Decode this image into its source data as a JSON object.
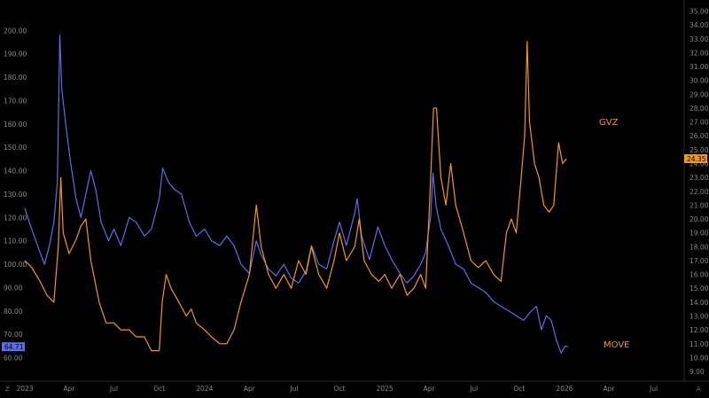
{
  "chart_data": {
    "type": "line",
    "title": "",
    "xlabel": "",
    "x_ticks": [
      "2023",
      "Apr",
      "Jul",
      "Oct",
      "2024",
      "Apr",
      "Jul",
      "Oct",
      "2025",
      "Apr",
      "Jul",
      "Oct",
      "2026",
      "Apr",
      "Jul"
    ],
    "x_range": [
      "2023-01-01",
      "2026-09-01"
    ],
    "axes": {
      "left": {
        "ylim": [
          50,
          213
        ],
        "ticks": [
          "60.00",
          "70.00",
          "80.00",
          "90.00",
          "100.00",
          "110.00",
          "120.00",
          "130.00",
          "140.00",
          "150.00",
          "160.00",
          "170.00",
          "180.00",
          "190.00",
          "200.00"
        ]
      },
      "right": {
        "ylim": [
          8.3,
          35.8
        ],
        "ticks": [
          "9.00",
          "10.00",
          "11.00",
          "12.00",
          "13.00",
          "14.00",
          "15.00",
          "16.00",
          "17.00",
          "18.00",
          "19.00",
          "20.00",
          "21.00",
          "22.00",
          "23.00",
          "24.00",
          "25.00",
          "26.00",
          "27.00",
          "28.00",
          "29.00",
          "30.00",
          "31.00",
          "32.00",
          "33.00",
          "34.00",
          "35.00"
        ]
      }
    },
    "series": [
      {
        "name": "MOVE",
        "axis": "left",
        "color": "#5b6ee8",
        "last_value_label": "64.71",
        "points": [
          [
            "2023-01-01",
            124
          ],
          [
            "2023-01-10",
            118
          ],
          [
            "2023-01-20",
            112
          ],
          [
            "2023-02-01",
            105
          ],
          [
            "2023-02-10",
            100
          ],
          [
            "2023-02-20",
            108
          ],
          [
            "2023-03-01",
            118
          ],
          [
            "2023-03-08",
            135
          ],
          [
            "2023-03-13",
            198
          ],
          [
            "2023-03-17",
            175
          ],
          [
            "2023-03-25",
            160
          ],
          [
            "2023-04-05",
            142
          ],
          [
            "2023-04-15",
            128
          ],
          [
            "2023-04-25",
            120
          ],
          [
            "2023-05-05",
            130
          ],
          [
            "2023-05-15",
            140
          ],
          [
            "2023-05-25",
            132
          ],
          [
            "2023-06-05",
            118
          ],
          [
            "2023-06-20",
            110
          ],
          [
            "2023-07-01",
            115
          ],
          [
            "2023-07-15",
            108
          ],
          [
            "2023-08-01",
            120
          ],
          [
            "2023-08-15",
            118
          ],
          [
            "2023-09-01",
            112
          ],
          [
            "2023-09-15",
            115
          ],
          [
            "2023-10-01",
            128
          ],
          [
            "2023-10-08",
            141
          ],
          [
            "2023-10-20",
            135
          ],
          [
            "2023-11-01",
            132
          ],
          [
            "2023-11-15",
            130
          ],
          [
            "2023-12-01",
            118
          ],
          [
            "2023-12-15",
            112
          ],
          [
            "2024-01-01",
            115
          ],
          [
            "2024-01-15",
            110
          ],
          [
            "2024-02-01",
            108
          ],
          [
            "2024-02-15",
            112
          ],
          [
            "2024-03-01",
            108
          ],
          [
            "2024-03-15",
            100
          ],
          [
            "2024-04-01",
            96
          ],
          [
            "2024-04-15",
            110
          ],
          [
            "2024-04-25",
            104
          ],
          [
            "2024-05-10",
            98
          ],
          [
            "2024-05-25",
            95
          ],
          [
            "2024-06-10",
            100
          ],
          [
            "2024-06-25",
            94
          ],
          [
            "2024-07-10",
            92
          ],
          [
            "2024-07-25",
            97
          ],
          [
            "2024-08-05",
            108
          ],
          [
            "2024-08-20",
            100
          ],
          [
            "2024-09-05",
            98
          ],
          [
            "2024-09-20",
            110
          ],
          [
            "2024-10-01",
            118
          ],
          [
            "2024-10-15",
            108
          ],
          [
            "2024-11-01",
            122
          ],
          [
            "2024-11-06",
            128
          ],
          [
            "2024-11-15",
            112
          ],
          [
            "2024-12-01",
            102
          ],
          [
            "2024-12-18",
            116
          ],
          [
            "2025-01-01",
            108
          ],
          [
            "2025-01-15",
            102
          ],
          [
            "2025-02-01",
            96
          ],
          [
            "2025-02-15",
            92
          ],
          [
            "2025-03-01",
            95
          ],
          [
            "2025-03-15",
            100
          ],
          [
            "2025-03-25",
            105
          ],
          [
            "2025-04-04",
            120
          ],
          [
            "2025-04-09",
            139
          ],
          [
            "2025-04-15",
            125
          ],
          [
            "2025-04-25",
            115
          ],
          [
            "2025-05-10",
            108
          ],
          [
            "2025-05-25",
            100
          ],
          [
            "2025-06-10",
            98
          ],
          [
            "2025-06-25",
            92
          ],
          [
            "2025-07-10",
            90
          ],
          [
            "2025-07-25",
            88
          ],
          [
            "2025-08-10",
            84
          ],
          [
            "2025-08-25",
            82
          ],
          [
            "2025-09-10",
            80
          ],
          [
            "2025-09-25",
            78
          ],
          [
            "2025-10-10",
            76
          ],
          [
            "2025-10-25",
            80
          ],
          [
            "2025-11-05",
            82
          ],
          [
            "2025-11-15",
            72
          ],
          [
            "2025-11-25",
            78
          ],
          [
            "2025-12-05",
            76
          ],
          [
            "2025-12-15",
            68
          ],
          [
            "2025-12-25",
            62
          ],
          [
            "2026-01-02",
            65
          ],
          [
            "2026-01-08",
            64.71
          ]
        ]
      },
      {
        "name": "GVZ",
        "axis": "right",
        "color": "#f2961e",
        "last_value_label": "24.35",
        "points": [
          [
            "2023-01-01",
            17
          ],
          [
            "2023-01-15",
            16.5
          ],
          [
            "2023-02-01",
            15.5
          ],
          [
            "2023-02-15",
            14.5
          ],
          [
            "2023-03-01",
            14
          ],
          [
            "2023-03-10",
            18
          ],
          [
            "2023-03-15",
            23
          ],
          [
            "2023-03-20",
            19
          ],
          [
            "2023-04-01",
            17.5
          ],
          [
            "2023-04-15",
            18.5
          ],
          [
            "2023-04-25",
            19.5
          ],
          [
            "2023-05-05",
            20
          ],
          [
            "2023-05-15",
            17
          ],
          [
            "2023-06-01",
            14
          ],
          [
            "2023-06-15",
            12.5
          ],
          [
            "2023-07-01",
            12.5
          ],
          [
            "2023-07-15",
            12
          ],
          [
            "2023-08-01",
            12
          ],
          [
            "2023-08-15",
            11.5
          ],
          [
            "2023-09-01",
            11.5
          ],
          [
            "2023-09-15",
            10.5
          ],
          [
            "2023-10-01",
            10.5
          ],
          [
            "2023-10-07",
            14
          ],
          [
            "2023-10-15",
            16
          ],
          [
            "2023-10-25",
            15
          ],
          [
            "2023-11-10",
            14
          ],
          [
            "2023-11-25",
            13
          ],
          [
            "2023-12-05",
            13.5
          ],
          [
            "2023-12-15",
            12.5
          ],
          [
            "2024-01-01",
            12
          ],
          [
            "2024-01-15",
            11.5
          ],
          [
            "2024-02-01",
            11
          ],
          [
            "2024-02-15",
            11
          ],
          [
            "2024-03-01",
            12
          ],
          [
            "2024-03-15",
            14
          ],
          [
            "2024-04-01",
            16
          ],
          [
            "2024-04-15",
            21
          ],
          [
            "2024-04-25",
            18
          ],
          [
            "2024-05-10",
            16
          ],
          [
            "2024-05-25",
            15
          ],
          [
            "2024-06-10",
            16
          ],
          [
            "2024-06-25",
            15
          ],
          [
            "2024-07-10",
            17
          ],
          [
            "2024-07-25",
            16
          ],
          [
            "2024-08-05",
            18
          ],
          [
            "2024-08-20",
            16
          ],
          [
            "2024-09-05",
            15
          ],
          [
            "2024-09-20",
            17
          ],
          [
            "2024-10-01",
            19
          ],
          [
            "2024-10-15",
            17
          ],
          [
            "2024-11-01",
            18
          ],
          [
            "2024-11-10",
            20
          ],
          [
            "2024-11-20",
            17
          ],
          [
            "2024-12-05",
            16
          ],
          [
            "2024-12-20",
            15.5
          ],
          [
            "2025-01-01",
            16
          ],
          [
            "2025-01-15",
            15
          ],
          [
            "2025-02-01",
            16
          ],
          [
            "2025-02-15",
            14.5
          ],
          [
            "2025-03-01",
            15
          ],
          [
            "2025-03-15",
            16
          ],
          [
            "2025-03-25",
            15
          ],
          [
            "2025-04-03",
            22
          ],
          [
            "2025-04-10",
            28
          ],
          [
            "2025-04-16",
            28
          ],
          [
            "2025-04-25",
            23
          ],
          [
            "2025-05-05",
            21
          ],
          [
            "2025-05-15",
            24
          ],
          [
            "2025-05-25",
            21
          ],
          [
            "2025-06-10",
            19
          ],
          [
            "2025-06-25",
            17
          ],
          [
            "2025-07-10",
            16.5
          ],
          [
            "2025-07-25",
            17
          ],
          [
            "2025-08-10",
            16
          ],
          [
            "2025-08-25",
            15.5
          ],
          [
            "2025-09-05",
            19
          ],
          [
            "2025-09-15",
            20
          ],
          [
            "2025-09-25",
            19
          ],
          [
            "2025-10-05",
            23
          ],
          [
            "2025-10-12",
            26
          ],
          [
            "2025-10-17",
            32.8
          ],
          [
            "2025-10-22",
            27
          ],
          [
            "2025-11-01",
            24
          ],
          [
            "2025-11-10",
            23
          ],
          [
            "2025-11-20",
            21
          ],
          [
            "2025-12-01",
            20.5
          ],
          [
            "2025-12-10",
            21
          ],
          [
            "2025-12-20",
            25.5
          ],
          [
            "2025-12-28",
            24
          ],
          [
            "2026-01-05",
            24.35
          ]
        ]
      }
    ],
    "series_labels_on_chart": [
      "GVZ",
      "MOVE"
    ],
    "grid": false,
    "legend": "inline labels right"
  }
}
